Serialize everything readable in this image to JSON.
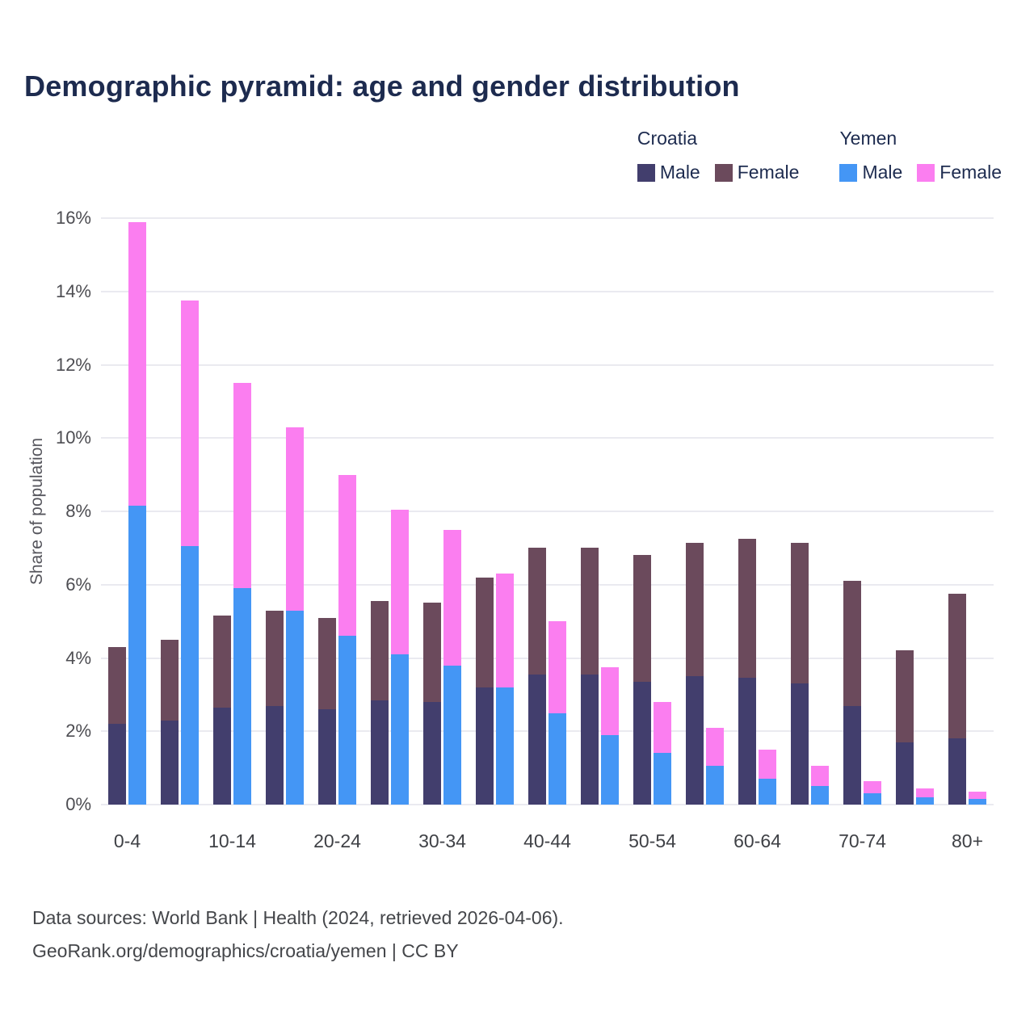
{
  "title": "Demographic pyramid: age and gender distribution",
  "colors": {
    "croatia_male": "#423e6d",
    "croatia_female": "#6b4a5c",
    "yemen_male": "#4496f5",
    "yemen_female": "#fb7ef0",
    "title_text": "#1d2b4f",
    "gridline": "#eaeaf0"
  },
  "legend": {
    "groups": [
      {
        "country": "Croatia",
        "items": [
          {
            "label": "Male",
            "color": "#423e6d"
          },
          {
            "label": "Female",
            "color": "#6b4a5c"
          }
        ]
      },
      {
        "country": "Yemen",
        "items": [
          {
            "label": "Male",
            "color": "#4496f5"
          },
          {
            "label": "Female",
            "color": "#fb7ef0"
          }
        ]
      }
    ]
  },
  "chart_data": {
    "type": "bar",
    "stacked": true,
    "title": "Demographic pyramid: age and gender distribution",
    "xlabel": "",
    "ylabel": "Share of population",
    "ylim": [
      0,
      16
    ],
    "yticks": [
      0,
      2,
      4,
      6,
      8,
      10,
      12,
      14,
      16
    ],
    "ytick_labels": [
      "0%",
      "2%",
      "4%",
      "6%",
      "8%",
      "10%",
      "12%",
      "14%",
      "16%"
    ],
    "grid": true,
    "legend_position": "top-right",
    "categories": [
      "0-4",
      "5-9",
      "10-14",
      "15-19",
      "20-24",
      "25-29",
      "30-34",
      "35-39",
      "40-44",
      "45-49",
      "50-54",
      "55-59",
      "60-64",
      "65-69",
      "70-74",
      "75-79",
      "80+"
    ],
    "xtick_shown": [
      "0-4",
      "10-14",
      "20-24",
      "30-34",
      "40-44",
      "50-54",
      "60-64",
      "70-74",
      "80+"
    ],
    "series": [
      {
        "name": "Croatia Male",
        "stack": "croatia",
        "color": "#423e6d",
        "values": [
          2.2,
          2.3,
          2.65,
          2.7,
          2.6,
          2.85,
          2.8,
          3.2,
          3.55,
          3.55,
          3.35,
          3.5,
          3.45,
          3.3,
          2.7,
          1.7,
          1.8
        ]
      },
      {
        "name": "Croatia Female",
        "stack": "croatia",
        "color": "#6b4a5c",
        "values": [
          2.1,
          2.2,
          2.5,
          2.6,
          2.5,
          2.7,
          2.7,
          3.0,
          3.45,
          3.45,
          3.45,
          3.65,
          3.8,
          3.85,
          3.4,
          2.5,
          3.95
        ]
      },
      {
        "name": "Yemen Male",
        "stack": "yemen",
        "color": "#4496f5",
        "values": [
          8.15,
          7.05,
          5.9,
          5.3,
          4.6,
          4.1,
          3.8,
          3.2,
          2.5,
          1.9,
          1.4,
          1.05,
          0.7,
          0.5,
          0.3,
          0.2,
          0.15
        ]
      },
      {
        "name": "Yemen Female",
        "stack": "yemen",
        "color": "#fb7ef0",
        "values": [
          7.75,
          6.7,
          5.6,
          5.0,
          4.4,
          3.95,
          3.7,
          3.1,
          2.5,
          1.85,
          1.4,
          1.05,
          0.8,
          0.55,
          0.35,
          0.25,
          0.2
        ]
      }
    ]
  },
  "footer": {
    "line1": "Data sources: World Bank | Health (2024, retrieved 2026-04-06).",
    "line2": "GeoRank.org/demographics/croatia/yemen | CC BY"
  }
}
